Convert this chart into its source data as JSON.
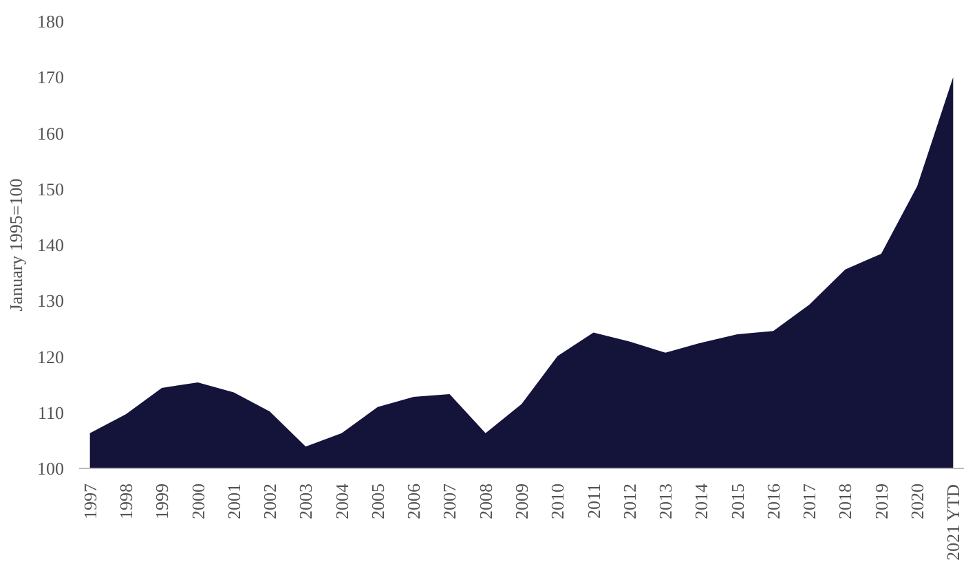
{
  "chart_data": {
    "type": "area",
    "ylabel": "January 1995=100",
    "categories": [
      "1997",
      "1998",
      "1999",
      "2000",
      "2001",
      "2002",
      "2003",
      "2004",
      "2005",
      "2006",
      "2007",
      "2008",
      "2009",
      "2010",
      "2011",
      "2012",
      "2013",
      "2014",
      "2015",
      "2016",
      "2017",
      "2018",
      "2019",
      "2020",
      "2021 YTD"
    ],
    "series": [
      {
        "color": "#14133a",
        "values": [
          106.3,
          109.7,
          114.4,
          115.4,
          113.6,
          110.2,
          103.9,
          106.3,
          111,
          112.8,
          113.3,
          106.3,
          111.5,
          120.1,
          124.3,
          122.7,
          120.7,
          122.5,
          124,
          124.6,
          129.3,
          135.6,
          138.4,
          150.5,
          170
        ]
      }
    ],
    "ylim": [
      100,
      180
    ],
    "yticks": [
      100,
      110,
      120,
      130,
      140,
      150,
      160,
      170,
      180
    ],
    "grid": false
  }
}
